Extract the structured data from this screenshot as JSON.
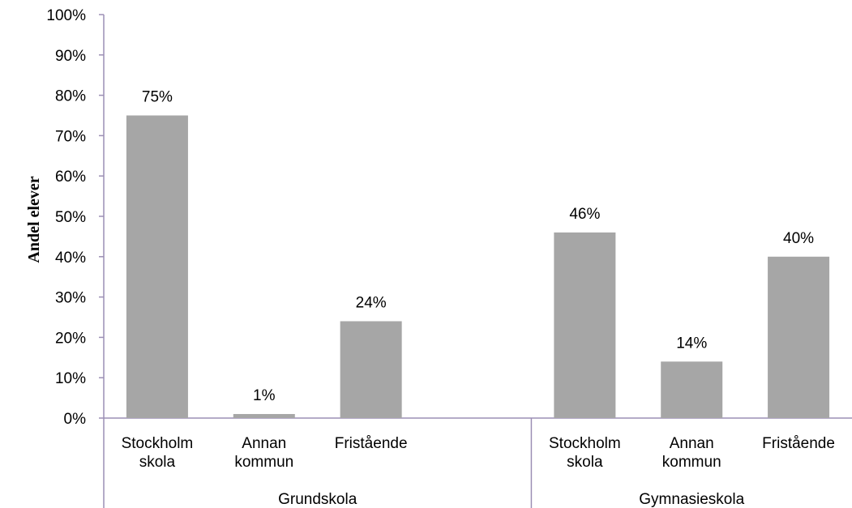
{
  "chart_data": {
    "type": "bar",
    "ylabel": "Andel elever",
    "ylim": [
      0,
      100
    ],
    "y_ticks": [
      "0%",
      "10%",
      "20%",
      "30%",
      "40%",
      "50%",
      "60%",
      "70%",
      "80%",
      "90%",
      "100%"
    ],
    "grid": false,
    "bar_color": "#a6a6a6",
    "axis_color": "#9c8fb5",
    "groups": [
      {
        "name": "Grundskola",
        "categories": [
          [
            "Stockholm",
            "skola"
          ],
          [
            "Annan",
            "kommun"
          ],
          [
            "Fristående"
          ]
        ],
        "values": [
          75,
          1,
          24
        ],
        "labels": [
          "75%",
          "1%",
          "24%"
        ]
      },
      {
        "name": "Gymnasieskola",
        "categories": [
          [
            "Stockholm",
            "skola"
          ],
          [
            "Annan",
            "kommun"
          ],
          [
            "Fristående"
          ]
        ],
        "values": [
          46,
          14,
          40
        ],
        "labels": [
          "46%",
          "14%",
          "40%"
        ]
      }
    ]
  }
}
